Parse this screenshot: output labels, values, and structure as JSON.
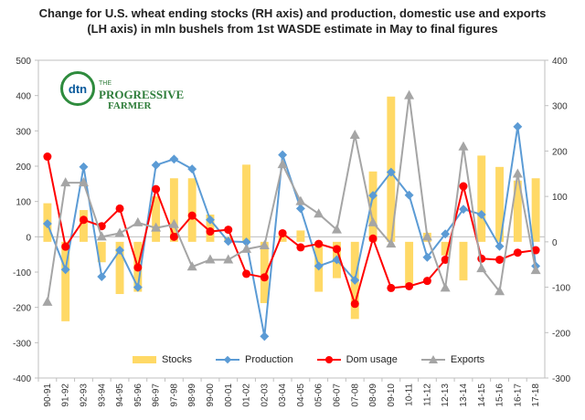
{
  "chart_data": {
    "type": "bar+line",
    "title": "Change for U.S. wheat ending stocks (RH axis) and production, domestic use and exports (LH axis) in mln bushels from 1st WASDE estimate in May to final figures",
    "categories": [
      "90-91",
      "91-92",
      "92-93",
      "93-94",
      "94-95",
      "95-96",
      "96-97",
      "97-98",
      "98-99",
      "99-00",
      "00-01",
      "01-02",
      "02-03",
      "03-04",
      "04-05",
      "05-06",
      "06-07",
      "07-08",
      "08-09",
      "09-10",
      "10-11",
      "11-12",
      "12-13",
      "13-14",
      "14-15",
      "15-16",
      "16-17",
      "17-18"
    ],
    "left_axis": {
      "ylim": [
        -400,
        500
      ],
      "ticks": [
        -400,
        -300,
        -200,
        -100,
        0,
        100,
        200,
        300,
        400,
        500
      ]
    },
    "right_axis": {
      "ylim": [
        -300,
        400
      ],
      "ticks": [
        -300,
        -200,
        -100,
        0,
        100,
        200,
        300,
        400
      ]
    },
    "series": [
      {
        "name": "Stocks",
        "kind": "bar",
        "axis": "right",
        "color": "#ffd966",
        "values": [
          85,
          -175,
          70,
          -45,
          -115,
          -110,
          100,
          140,
          140,
          60,
          10,
          170,
          -135,
          15,
          25,
          -110,
          -80,
          -170,
          155,
          320,
          -95,
          20,
          -30,
          -85,
          190,
          165,
          135,
          140
        ]
      },
      {
        "name": "Production",
        "kind": "line",
        "axis": "left",
        "color": "#5b9bd5",
        "values": [
          37,
          -93,
          198,
          -113,
          -38,
          -143,
          203,
          220,
          192,
          48,
          -13,
          -15,
          -282,
          232,
          80,
          -83,
          -65,
          -123,
          117,
          183,
          118,
          -58,
          8,
          78,
          63,
          -27,
          312,
          -83
        ]
      },
      {
        "name": "Dom usage",
        "kind": "line",
        "axis": "left",
        "color": "#ff0000",
        "values": [
          227,
          -28,
          48,
          30,
          80,
          -87,
          135,
          0,
          60,
          15,
          20,
          -105,
          -115,
          10,
          -30,
          -20,
          -35,
          -190,
          -5,
          -145,
          -140,
          -125,
          -65,
          143,
          -62,
          -65,
          -45,
          -38
        ]
      },
      {
        "name": "Exports",
        "kind": "line",
        "axis": "left",
        "color": "#a5a5a5",
        "values": [
          -185,
          153,
          153,
          0,
          10,
          40,
          25,
          35,
          -85,
          -65,
          -65,
          -35,
          -25,
          205,
          100,
          65,
          20,
          288,
          40,
          -20,
          400,
          0,
          -145,
          255,
          -90,
          -155,
          178,
          -95
        ]
      }
    ]
  },
  "logo": {
    "abbrev": "dtn",
    "the": "THE",
    "name": "PROGRESSIVE",
    "name2": "FARMER"
  }
}
